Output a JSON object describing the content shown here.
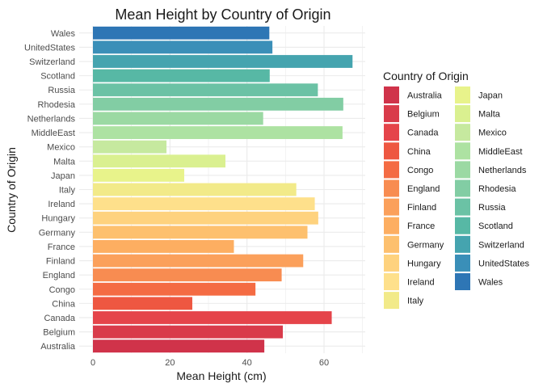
{
  "chart_data": {
    "type": "bar",
    "orientation": "horizontal",
    "title": "Mean Height by Country of Origin",
    "xlabel": "Mean Height (cm)",
    "ylabel": "Country of Origin",
    "xlim": [
      0,
      70
    ],
    "xticks": [
      0,
      20,
      40,
      60
    ],
    "grid": true,
    "legend_title": "Country of Origin",
    "legend_position": "right",
    "categories": [
      "Australia",
      "Belgium",
      "Canada",
      "China",
      "Congo",
      "England",
      "Finland",
      "France",
      "Germany",
      "Hungary",
      "Ireland",
      "Italy",
      "Japan",
      "Malta",
      "Mexico",
      "MiddleEast",
      "Netherlands",
      "Rhodesia",
      "Russia",
      "Scotland",
      "Switzerland",
      "UnitedStates",
      "Wales"
    ],
    "values": [
      44.5,
      49.3,
      62.0,
      25.8,
      42.2,
      49.0,
      54.6,
      36.6,
      55.7,
      58.5,
      57.6,
      52.8,
      23.7,
      34.4,
      19.1,
      64.8,
      44.2,
      65.0,
      58.4,
      45.9,
      67.4,
      46.6,
      45.8
    ],
    "colors": [
      "#D0334A",
      "#D93B4A",
      "#E5444A",
      "#EE5741",
      "#F46B43",
      "#F88C51",
      "#FBA05B",
      "#FDAE61",
      "#FDC06E",
      "#FED27E",
      "#FEE08B",
      "#F2EA89",
      "#E8F38B",
      "#DAF090",
      "#C6E99F",
      "#ADE2A2",
      "#9BD9A3",
      "#82CDA4",
      "#6BC2A5",
      "#57B8A5",
      "#45A4AF",
      "#3A8FB8",
      "#2E76B5"
    ]
  }
}
